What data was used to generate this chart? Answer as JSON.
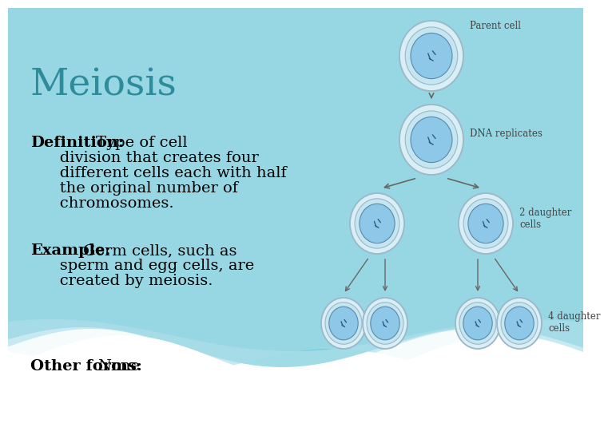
{
  "title": "Meiosis",
  "title_color": "#2E8B9A",
  "title_fontsize": 34,
  "bg_color": "#ffffff",
  "definition_bold": "Definition:",
  "definition_lines": [
    "Type of cell",
    "   division that creates four",
    "   different cells each with half",
    "   the original number of",
    "   chromosomes."
  ],
  "example_bold": "Example:",
  "example_lines": [
    "Germ cells, such as",
    "   sperm and egg cells, are",
    "   created by meiosis."
  ],
  "other_bold": "Other forms:",
  "other_text": "None",
  "text_fontsize": 14,
  "label_parent": "Parent cell",
  "label_dna": "DNA replicates",
  "label_2daughter": "2 daughter\ncells",
  "label_4daughter": "4 daughter\ncells",
  "cell_outer_color": "#daeef5",
  "cell_mid_color": "#c5e5f0",
  "cell_inner_color": "#8ec8e8",
  "cell_outer_edge": "#9ab8c8",
  "cell_inner_edge": "#5a8aaa",
  "arrow_color": "#666666",
  "label_color": "#444444",
  "wave_color1": "#5bbfcf",
  "wave_color2": "#80d0de",
  "wave_color3": "#aadeea"
}
